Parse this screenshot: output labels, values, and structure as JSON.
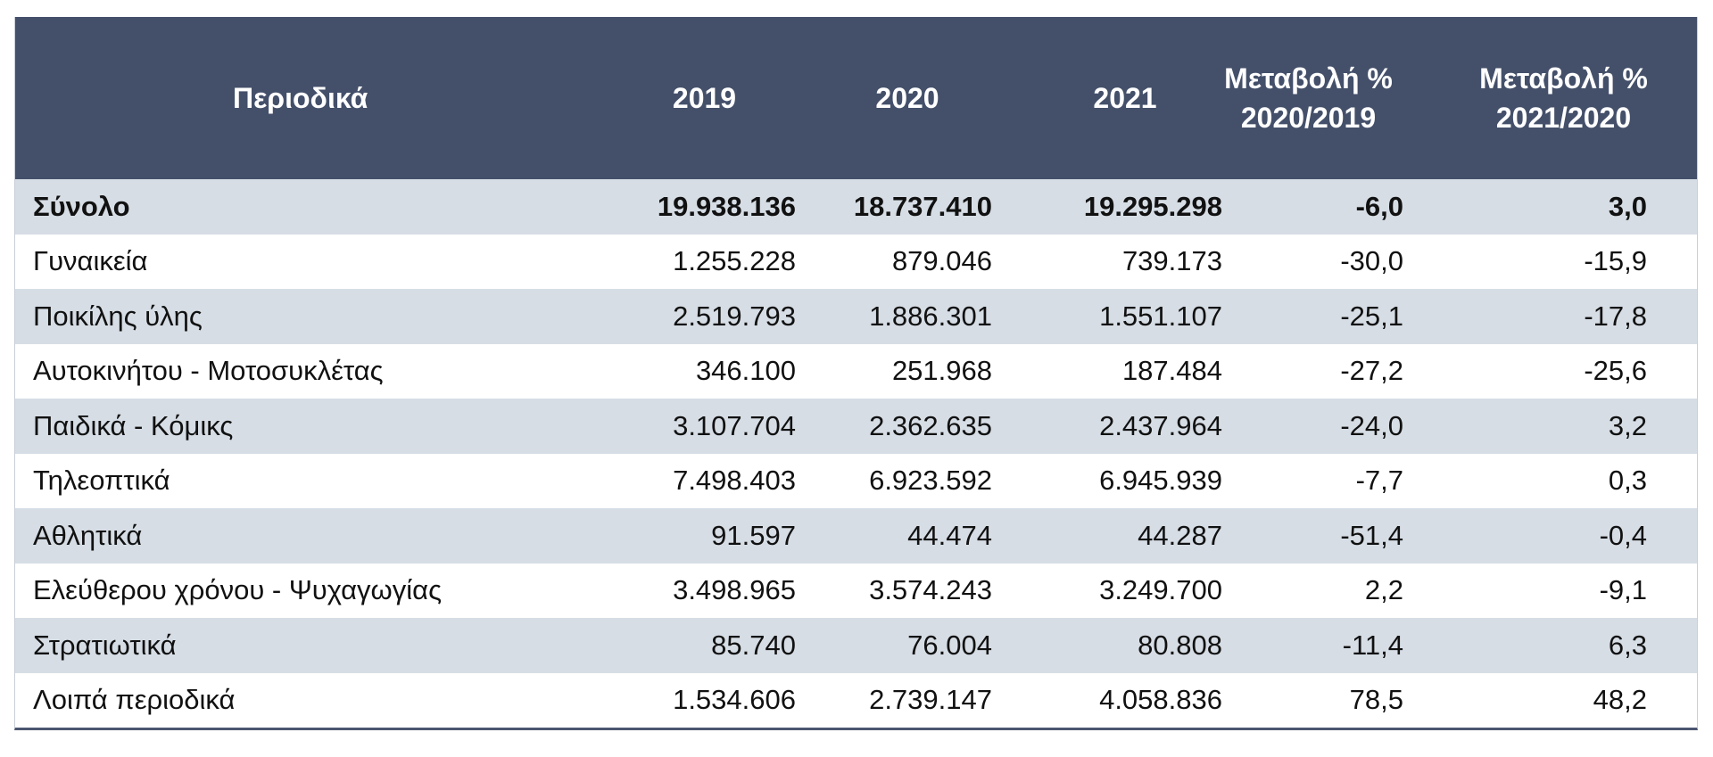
{
  "table": {
    "headers": [
      [
        "Περιοδικά"
      ],
      [
        "2019"
      ],
      [
        "2020"
      ],
      [
        "2021"
      ],
      [
        "Μεταβολή %",
        "2020/2019"
      ],
      [
        "Μεταβολή %",
        "2021/2020"
      ]
    ],
    "rows": [
      [
        "Σύνολο",
        "19.938.136",
        "18.737.410",
        "19.295.298",
        "-6,0",
        "3,0"
      ],
      [
        "Γυναικεία",
        "1.255.228",
        "879.046",
        "739.173",
        "-30,0",
        "-15,9"
      ],
      [
        "Ποικίλης ύλης",
        "2.519.793",
        "1.886.301",
        "1.551.107",
        "-25,1",
        "-17,8"
      ],
      [
        "Αυτοκινήτου - Μοτοσυκλέτας",
        "346.100",
        "251.968",
        "187.484",
        "-27,2",
        "-25,6"
      ],
      [
        "Παιδικά - Κόμικς",
        "3.107.704",
        "2.362.635",
        "2.437.964",
        "-24,0",
        "3,2"
      ],
      [
        "Τηλεοπτικά",
        "7.498.403",
        "6.923.592",
        "6.945.939",
        "-7,7",
        "0,3"
      ],
      [
        "Αθλητικά",
        "91.597",
        "44.474",
        "44.287",
        "-51,4",
        "-0,4"
      ],
      [
        "Ελεύθερου χρόνου - Ψυχαγωγίας",
        "3.498.965",
        "3.574.243",
        "3.249.700",
        "2,2",
        "-9,1"
      ],
      [
        "Στρατιωτικά",
        "85.740",
        "76.004",
        "80.808",
        "-11,4",
        "6,3"
      ],
      [
        "Λοιπά περιοδικά",
        "1.534.606",
        "2.739.147",
        "4.058.836",
        "78,5",
        "48,2"
      ]
    ]
  },
  "colors": {
    "header_bg": "#44506a",
    "stripe": "#d6dde5"
  }
}
